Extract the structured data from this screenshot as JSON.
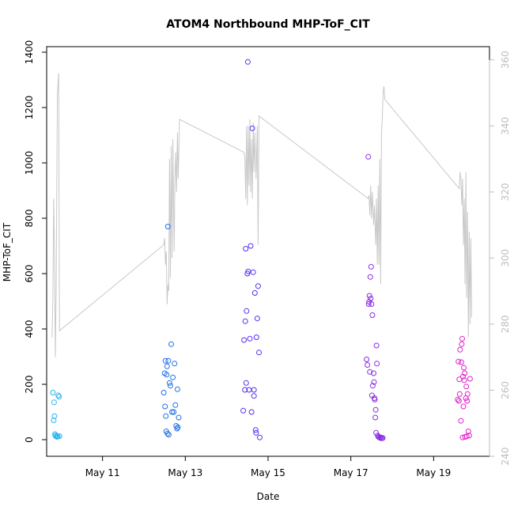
{
  "chart_data": {
    "type": "scatter",
    "title": "ATOM4 Northbound MHP-ToF_CIT",
    "xlabel": "Date",
    "ylabel": "MHP-ToF_CIT",
    "x_unit": "day of May (fractional)",
    "xlim": [
      9.65,
      20.35
    ],
    "ylim": [
      -60,
      1420
    ],
    "y_ticks": [
      0,
      200,
      400,
      600,
      800,
      1000,
      1200,
      1400
    ],
    "y_tick_labels": [
      "0",
      "200",
      "400",
      "600",
      "800",
      "1000",
      "1200",
      "1400"
    ],
    "x_ticks": [
      11,
      13,
      15,
      17,
      19
    ],
    "x_tick_labels": [
      "May 11",
      "May 13",
      "May 15",
      "May 17",
      "May 19"
    ],
    "secondary_axis": {
      "side": "right",
      "color": "#bdbdbd",
      "ylim": [
        240,
        364
      ],
      "ticks": [
        240,
        260,
        280,
        300,
        320,
        340,
        360
      ],
      "tick_labels": [
        "240",
        "260",
        "280",
        "300",
        "320",
        "340",
        "360"
      ]
    },
    "series": [
      {
        "name": "line",
        "style": "line",
        "color": "#c8c8c8",
        "axis": "right",
        "points": [
          [
            9.78,
            276
          ],
          [
            9.8,
            288
          ],
          [
            9.82,
            318
          ],
          [
            9.84,
            302
          ],
          [
            9.86,
            270
          ],
          [
            9.88,
            290
          ],
          [
            9.91,
            350
          ],
          [
            9.94,
            356
          ],
          [
            9.96,
            278
          ],
          [
            12.48,
            304
          ],
          [
            12.5,
            306
          ],
          [
            12.52,
            298
          ],
          [
            12.54,
            302
          ],
          [
            12.56,
            286
          ],
          [
            12.58,
            292
          ],
          [
            12.6,
            290
          ],
          [
            12.62,
            330
          ],
          [
            12.64,
            294
          ],
          [
            12.66,
            334
          ],
          [
            12.68,
            300
          ],
          [
            12.7,
            336
          ],
          [
            12.73,
            302
          ],
          [
            12.75,
            324
          ],
          [
            12.77,
            332
          ],
          [
            12.79,
            320
          ],
          [
            12.81,
            338
          ],
          [
            12.83,
            324
          ],
          [
            12.86,
            342
          ],
          [
            14.42,
            332
          ],
          [
            14.44,
            330
          ],
          [
            14.46,
            318
          ],
          [
            14.48,
            340
          ],
          [
            14.5,
            316
          ],
          [
            14.52,
            340
          ],
          [
            14.54,
            322
          ],
          [
            14.56,
            342
          ],
          [
            14.58,
            320
          ],
          [
            14.6,
            336
          ],
          [
            14.62,
            318
          ],
          [
            14.64,
            341
          ],
          [
            14.66,
            326
          ],
          [
            14.68,
            338
          ],
          [
            14.71,
            324
          ],
          [
            14.74,
            340
          ],
          [
            14.76,
            304
          ],
          [
            14.78,
            343
          ],
          [
            17.42,
            318
          ],
          [
            17.44,
            319
          ],
          [
            17.46,
            313
          ],
          [
            17.48,
            322
          ],
          [
            17.5,
            312
          ],
          [
            17.52,
            320
          ],
          [
            17.55,
            310
          ],
          [
            17.57,
            316
          ],
          [
            17.6,
            304
          ],
          [
            17.62,
            318
          ],
          [
            17.64,
            298
          ],
          [
            17.66,
            322
          ],
          [
            17.68,
            298
          ],
          [
            17.7,
            330
          ],
          [
            17.72,
            292
          ],
          [
            17.74,
            338
          ],
          [
            17.76,
            342
          ],
          [
            17.78,
            350
          ],
          [
            17.8,
            352
          ],
          [
            17.82,
            348
          ],
          [
            19.62,
            321
          ],
          [
            19.64,
            326
          ],
          [
            19.66,
            324
          ],
          [
            19.68,
            316
          ],
          [
            19.7,
            324
          ],
          [
            19.72,
            304
          ],
          [
            19.74,
            318
          ],
          [
            19.76,
            292
          ],
          [
            19.78,
            326
          ],
          [
            19.8,
            288
          ],
          [
            19.82,
            314
          ],
          [
            19.84,
            276
          ],
          [
            19.86,
            308
          ],
          [
            19.88,
            280
          ],
          [
            19.9,
            306
          ],
          [
            19.92,
            282
          ]
        ]
      },
      {
        "name": "measurements",
        "style": "points",
        "points": [
          [
            9.8,
            170,
            "#2bb3f0"
          ],
          [
            9.82,
            70,
            "#2bb3f0"
          ],
          [
            9.83,
            135,
            "#2bb3f0"
          ],
          [
            9.84,
            85,
            "#2bb3f0"
          ],
          [
            9.85,
            20,
            "#2bb3f0"
          ],
          [
            9.86,
            15,
            "#2bb3f0"
          ],
          [
            9.88,
            12,
            "#2bb3f0"
          ],
          [
            9.9,
            10,
            "#2bb3f0"
          ],
          [
            9.92,
            12,
            "#2bb3f0"
          ],
          [
            9.93,
            160,
            "#2bb3f0"
          ],
          [
            9.95,
            155,
            "#2bb3f0"
          ],
          [
            9.96,
            13,
            "#2bb3f0"
          ],
          [
            12.48,
            170,
            "#1e6fe8"
          ],
          [
            12.5,
            240,
            "#1e6fe8"
          ],
          [
            12.51,
            120,
            "#1e6fe8"
          ],
          [
            12.52,
            285,
            "#1e6fe8"
          ],
          [
            12.53,
            85,
            "#1e6fe8"
          ],
          [
            12.54,
            30,
            "#1e6fe8"
          ],
          [
            12.55,
            235,
            "#1e6fe8"
          ],
          [
            12.56,
            265,
            "#1e6fe8"
          ],
          [
            12.57,
            22,
            "#1e6fe8"
          ],
          [
            12.58,
            770,
            "#1e6fe8"
          ],
          [
            12.59,
            285,
            "#1e6fe8"
          ],
          [
            12.6,
            18,
            "#1e6fe8"
          ],
          [
            12.62,
            205,
            "#1e6fe8"
          ],
          [
            12.64,
            195,
            "#1e6fe8"
          ],
          [
            12.66,
            345,
            "#1e6fe8"
          ],
          [
            12.68,
            100,
            "#1e6fe8"
          ],
          [
            12.7,
            225,
            "#1e6fe8"
          ],
          [
            12.72,
            100,
            "#1e6fe8"
          ],
          [
            12.74,
            275,
            "#1e6fe8"
          ],
          [
            12.76,
            125,
            "#1e6fe8"
          ],
          [
            12.78,
            50,
            "#1e6fe8"
          ],
          [
            12.8,
            40,
            "#1e6fe8"
          ],
          [
            12.81,
            182,
            "#1e6fe8"
          ],
          [
            12.82,
            45,
            "#1e6fe8"
          ],
          [
            12.84,
            80,
            "#1e6fe8"
          ],
          [
            14.4,
            105,
            "#5a2cf2"
          ],
          [
            14.42,
            360,
            "#5a2cf2"
          ],
          [
            14.44,
            180,
            "#5a2cf2"
          ],
          [
            14.45,
            428,
            "#5a2cf2"
          ],
          [
            14.46,
            690,
            "#5a2cf2"
          ],
          [
            14.47,
            205,
            "#5a2cf2"
          ],
          [
            14.48,
            465,
            "#5a2cf2"
          ],
          [
            14.5,
            600,
            "#5a2cf2"
          ],
          [
            14.51,
            1365,
            "#5a2cf2"
          ],
          [
            14.52,
            608,
            "#5a2cf2"
          ],
          [
            14.54,
            180,
            "#5a2cf2"
          ],
          [
            14.56,
            365,
            "#5a2cf2"
          ],
          [
            14.58,
            700,
            "#5a2cf2"
          ],
          [
            14.6,
            100,
            "#5a2cf2"
          ],
          [
            14.62,
            1125,
            "#5a2cf2"
          ],
          [
            14.64,
            605,
            "#5a2cf2"
          ],
          [
            14.66,
            180,
            "#5a2cf2"
          ],
          [
            14.68,
            530,
            "#5a2cf2"
          ],
          [
            14.7,
            35,
            "#5a2cf2"
          ],
          [
            14.72,
            370,
            "#5a2cf2"
          ],
          [
            14.74,
            438,
            "#5a2cf2"
          ],
          [
            14.76,
            555,
            "#5a2cf2"
          ],
          [
            14.78,
            315,
            "#5a2cf2"
          ],
          [
            14.8,
            8,
            "#5a2cf2"
          ],
          [
            14.66,
            158,
            "#5a2cf2"
          ],
          [
            14.71,
            25,
            "#5a2cf2"
          ],
          [
            17.38,
            290,
            "#8a2be2"
          ],
          [
            17.4,
            270,
            "#8a2be2"
          ],
          [
            17.42,
            1022,
            "#8a2be2"
          ],
          [
            17.43,
            490,
            "#8a2be2"
          ],
          [
            17.44,
            498,
            "#8a2be2"
          ],
          [
            17.45,
            520,
            "#8a2be2"
          ],
          [
            17.46,
            245,
            "#8a2be2"
          ],
          [
            17.47,
            588,
            "#8a2be2"
          ],
          [
            17.48,
            510,
            "#8a2be2"
          ],
          [
            17.49,
            625,
            "#8a2be2"
          ],
          [
            17.5,
            490,
            "#8a2be2"
          ],
          [
            17.51,
            160,
            "#8a2be2"
          ],
          [
            17.52,
            450,
            "#8a2be2"
          ],
          [
            17.53,
            195,
            "#8a2be2"
          ],
          [
            17.55,
            240,
            "#8a2be2"
          ],
          [
            17.56,
            208,
            "#8a2be2"
          ],
          [
            17.57,
            150,
            "#8a2be2"
          ],
          [
            17.58,
            145,
            "#8a2be2"
          ],
          [
            17.59,
            80,
            "#8a2be2"
          ],
          [
            17.6,
            108,
            "#8a2be2"
          ],
          [
            17.61,
            25,
            "#8a2be2"
          ],
          [
            17.62,
            340,
            "#8a2be2"
          ],
          [
            17.63,
            275,
            "#8a2be2"
          ],
          [
            17.65,
            15,
            "#8a2be2"
          ],
          [
            17.67,
            10,
            "#8a2be2"
          ],
          [
            17.69,
            8,
            "#8a2be2"
          ],
          [
            17.71,
            6,
            "#8a2be2"
          ],
          [
            17.73,
            8,
            "#8a2be2"
          ],
          [
            17.75,
            5,
            "#8a2be2"
          ],
          [
            17.77,
            6,
            "#8a2be2"
          ],
          [
            19.58,
            145,
            "#e11fc9"
          ],
          [
            19.6,
            282,
            "#e11fc9"
          ],
          [
            19.61,
            140,
            "#e11fc9"
          ],
          [
            19.62,
            218,
            "#e11fc9"
          ],
          [
            19.63,
            165,
            "#e11fc9"
          ],
          [
            19.64,
            325,
            "#e11fc9"
          ],
          [
            19.66,
            68,
            "#e11fc9"
          ],
          [
            19.67,
            280,
            "#e11fc9"
          ],
          [
            19.68,
            345,
            "#e11fc9"
          ],
          [
            19.69,
            365,
            "#e11fc9"
          ],
          [
            19.7,
            8,
            "#e11fc9"
          ],
          [
            19.71,
            228,
            "#e11fc9"
          ],
          [
            19.72,
            120,
            "#e11fc9"
          ],
          [
            19.73,
            260,
            "#e11fc9"
          ],
          [
            19.74,
            215,
            "#e11fc9"
          ],
          [
            19.75,
            240,
            "#e11fc9"
          ],
          [
            19.76,
            10,
            "#e11fc9"
          ],
          [
            19.78,
            150,
            "#e11fc9"
          ],
          [
            19.79,
            192,
            "#e11fc9"
          ],
          [
            19.8,
            12,
            "#e11fc9"
          ],
          [
            19.81,
            140,
            "#e11fc9"
          ],
          [
            19.82,
            165,
            "#e11fc9"
          ],
          [
            19.84,
            30,
            "#e11fc9"
          ],
          [
            19.86,
            15,
            "#e11fc9"
          ],
          [
            19.88,
            220,
            "#e11fc9"
          ]
        ]
      }
    ]
  }
}
